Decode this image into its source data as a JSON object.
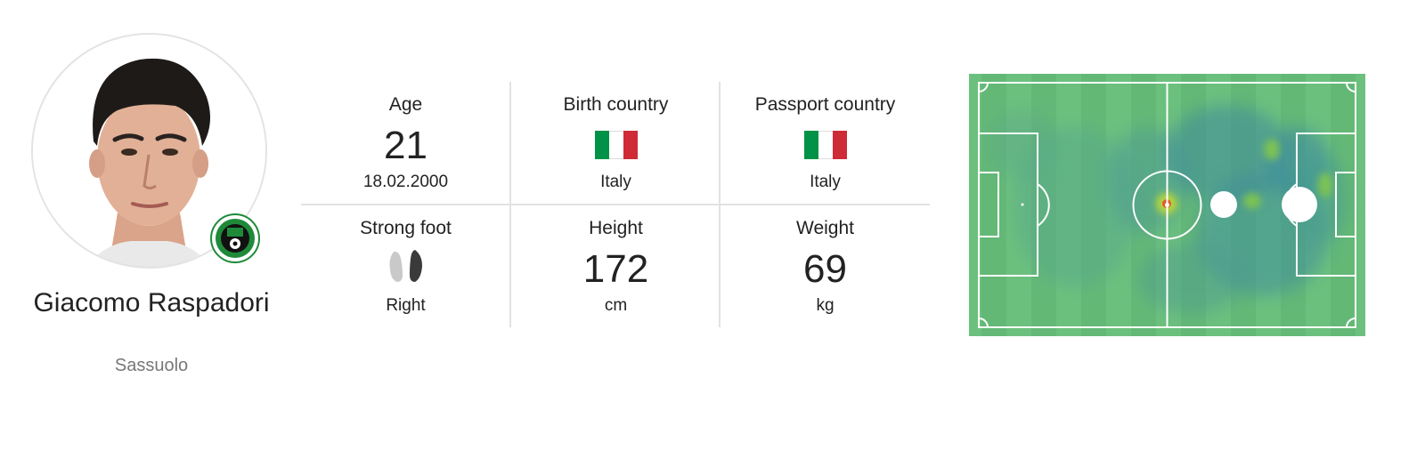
{
  "player": {
    "name": "Giacomo Raspadori",
    "club": "Sassuolo"
  },
  "stats": {
    "age": {
      "label": "Age",
      "value": "21",
      "sub": "18.02.2000"
    },
    "birth_country": {
      "label": "Birth country",
      "sub": "Italy",
      "flag_icon": "italy-flag-icon"
    },
    "passport_country": {
      "label": "Passport country",
      "sub": "Italy",
      "flag_icon": "italy-flag-icon"
    },
    "strong_foot": {
      "label": "Strong foot",
      "sub": "Right",
      "icon": "feet-icon"
    },
    "height": {
      "label": "Height",
      "value": "172",
      "sub": "cm"
    },
    "weight": {
      "label": "Weight",
      "value": "69",
      "sub": "kg"
    }
  },
  "colors": {
    "italy_green": "#009246",
    "italy_white": "#ffffff",
    "italy_red": "#ce2b37",
    "pitch_green": "#6cc07d",
    "club_green": "#1f8a3a"
  }
}
